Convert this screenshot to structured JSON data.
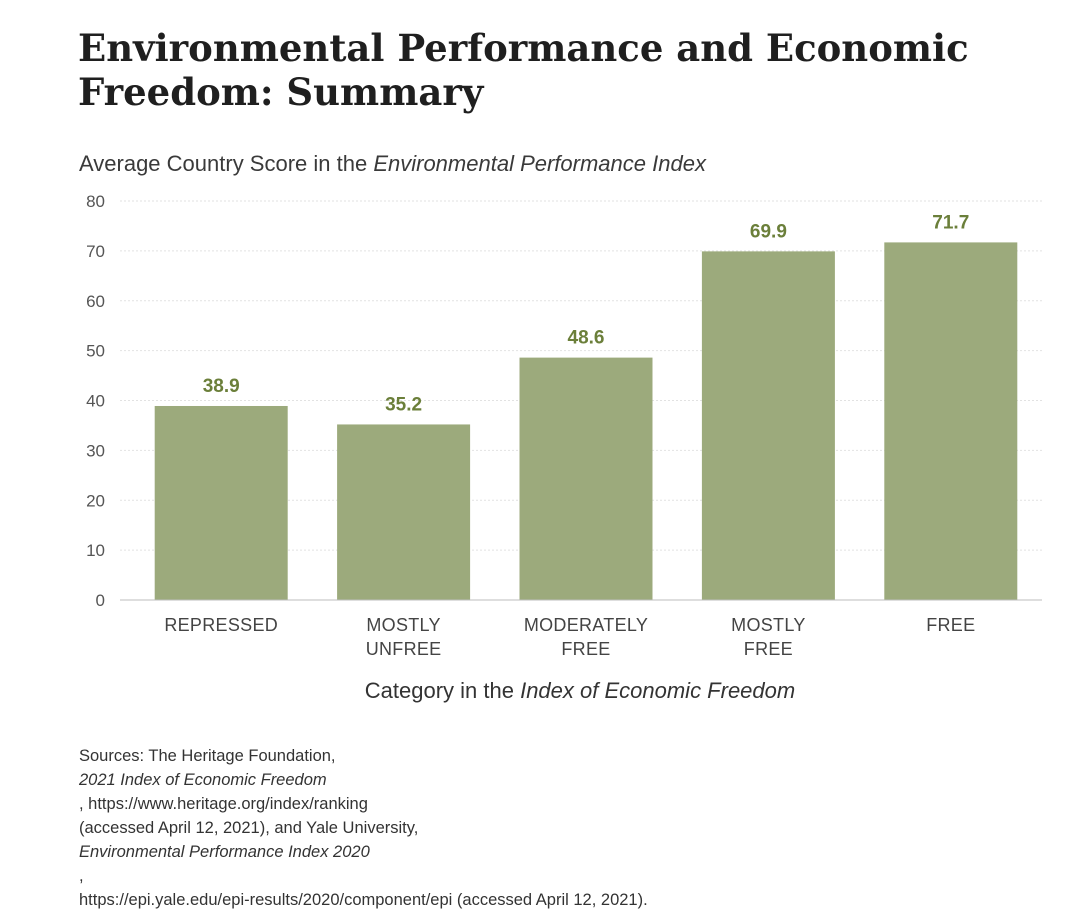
{
  "title_lines": [
    "Environmental Performance and Economic",
    "Freedom: Summary"
  ],
  "subtitle": {
    "prefix": "Average Country Score in the ",
    "italic": "Environmental Performance Index"
  },
  "xaxis_label": {
    "prefix": "Category in the ",
    "italic": "Index of Economic Freedom"
  },
  "sources": {
    "line1_a": "Sources: The Heritage Foundation, ",
    "line1_italic": "2021 Index of Economic Freedom",
    "line1_b": ", https://www.heritage.org/index/ranking",
    "line2_a": "(accessed April 12, 2021), and Yale University, ",
    "line2_italic": "Environmental Performance Index 2020",
    "line2_b": ",",
    "line3": "https://epi.yale.edu/epi-results/2020/component/epi (accessed April 12, 2021)."
  },
  "chart_data": {
    "type": "bar",
    "categories": [
      [
        "REPRESSED"
      ],
      [
        "MOSTLY",
        "UNFREE"
      ],
      [
        "MODERATELY",
        "FREE"
      ],
      [
        "MOSTLY",
        "FREE"
      ],
      [
        "FREE"
      ]
    ],
    "values": [
      38.9,
      35.2,
      48.6,
      69.9,
      71.7
    ],
    "value_labels": [
      "38.9",
      "35.2",
      "48.6",
      "69.9",
      "71.7"
    ],
    "ylim": [
      0,
      80
    ],
    "yticks": [
      0,
      10,
      20,
      30,
      40,
      50,
      60,
      70,
      80
    ],
    "grid": true,
    "bar_color": "#9caa7c",
    "label_color": "#6b7f3a"
  }
}
